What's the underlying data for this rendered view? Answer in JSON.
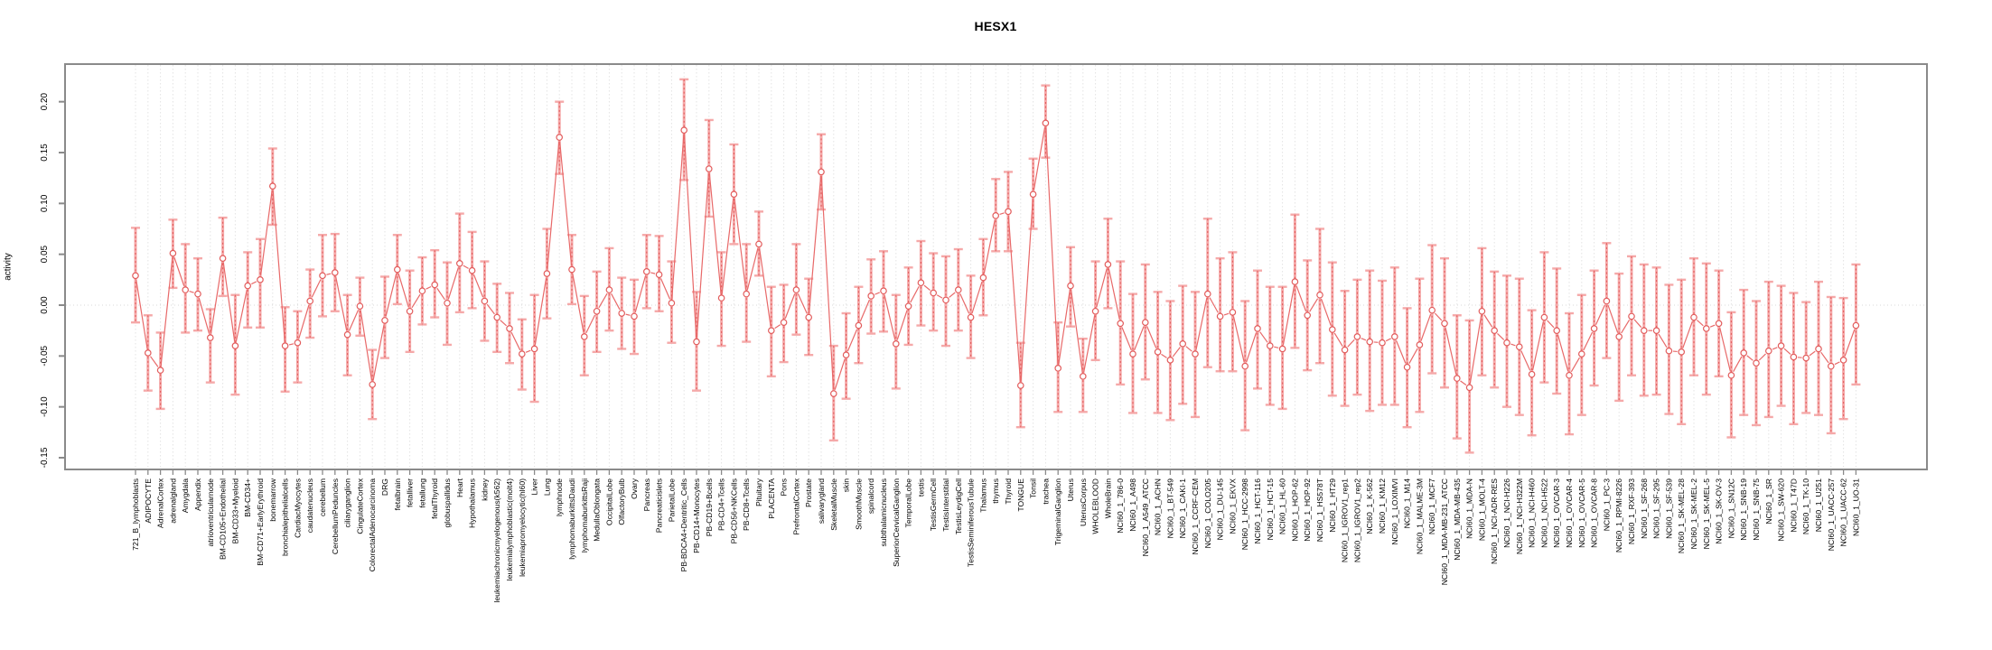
{
  "chart_data": {
    "type": "line",
    "title": "HESX1",
    "ylabel": "activity",
    "xlabel": "",
    "ylim": [
      -0.1615,
      0.2365
    ],
    "y_ticks": [
      -0.15,
      -0.1,
      -0.05,
      0.0,
      0.05,
      0.1,
      0.15,
      0.2
    ],
    "grid": "vertical-dashed-per-category, dotted-zero-line, boxed-frame",
    "legend": "none",
    "marker": "open-circle",
    "error_bars": true,
    "colors": {
      "series_line": "#e86969",
      "marker_stroke": "#e25c5c",
      "error_bar": "#f5a9a9",
      "error_center_dotted": "#e25c5c",
      "gridline": "#e3e3e3",
      "zero_line": "#d8d8d8",
      "frame": "#8a8a8a",
      "text": "#000000"
    },
    "categories": [
      "721_B_lymphoblasts",
      "ADIPOCYTE",
      "AdrenalCortex",
      "adrenalgland",
      "Amygdala",
      "Appendix",
      "atrioventricularnode",
      "BM-CD105+Endothelial",
      "BM-CD33+Myeloid",
      "BM-CD34+",
      "BM-CD71+EarlyErythroid",
      "bonemarrow",
      "bronchialepithelialcells",
      "CardiacMyocytes",
      "caudatenucleus",
      "cerebellum",
      "CerebellumPeduncles",
      "ciliaryganglion",
      "CingulateCortex",
      "ColorectalAdenocarcinoma",
      "DRG",
      "fetalbrain",
      "fetalliver",
      "fetallung",
      "fetalThyroid",
      "globuspallidus",
      "Heart",
      "Hypothalamus",
      "kidney",
      "leukemiachronicmyelogenous(k562)",
      "leukemialymphoblastic(molt4)",
      "leukemiapromyelocytic(hl60)",
      "Liver",
      "Lung",
      "lymphnode",
      "lymphomaburkittsDaudi",
      "lymphomaburkittsRaji",
      "MedullaOblongata",
      "OccipitalLobe",
      "OlfactoryBulb",
      "Ovary",
      "Pancreas",
      "Pancreaticislets",
      "ParietalLobe",
      "PB-BDCA4+Dentritic_Cells",
      "PB-CD14+Monocytes",
      "PB-CD19+Bcells",
      "PB-CD4+Tcells",
      "PB-CD56+NKCells",
      "PB-CD8+Tcells",
      "Pituitary",
      "PLACENTA",
      "Pons",
      "PrefrontalCortex",
      "Prostate",
      "salivarygland",
      "SkeletalMuscle",
      "skin",
      "SmoothMuscle",
      "spinalcord",
      "subthalamicnucleus",
      "SuperiorCervicalGanglion",
      "TemporalLobe",
      "testis",
      "TestisGermCell",
      "TestisInterstitial",
      "TestisLeydigCell",
      "TestisSeminiferousTubule",
      "Thalamus",
      "thymus",
      "Thyroid",
      "TONGUE",
      "Tonsil",
      "trachea",
      "TrigeminalGanglion",
      "Uterus",
      "UterusCorpus",
      "WHOLEBLOOD",
      "WholeBrain",
      "NCI60_1_786-0",
      "NCI60_1_A498",
      "NCI60_1_A549_ATCC",
      "NCI60_1_ACHN",
      "NCI60_1_BT-549",
      "NCI60_1_CAKI-1",
      "NCI60_1_CCRF-CEM",
      "NCI60_1_COLO205",
      "NCI60_1_DU-145",
      "NCI60_1_EKVX",
      "NCI60_1_HCC-2998",
      "NCI60_1_HCT-116",
      "NCI60_1_HCT-15",
      "NCI60_1_HL-60",
      "NCI60_1_HOP-62",
      "NCI60_1_HOP-92",
      "NCI60_1_HS578T",
      "NCI60_1_HT29",
      "NCI60_1_IGROV1_rep1",
      "NCI60_1_IGROV1_rep2",
      "NCI60_1_K-562",
      "NCI60_1_KM12",
      "NCI60_1_LOXIMVI",
      "NCI60_1_M14",
      "NCI60_1_MALME-3M",
      "NCI60_1_MCF7",
      "NCI60_1_MDA-MB-231_ATCC",
      "NCI60_1_MDA-MB-435",
      "NCI60_1_MDA-N",
      "NCI60_1_MOLT-4",
      "NCI60_1_NCI-ADR-RES",
      "NCI60_1_NCI-H226",
      "NCI60_1_NCI-H322M",
      "NCI60_1_NCI-H460",
      "NCI60_1_NCI-H522",
      "NCI60_1_OVCAR-3",
      "NCI60_1_OVCAR-4",
      "NCI60_1_OVCAR-5",
      "NCI60_1_OVCAR-8",
      "NCI60_1_PC-3",
      "NCI60_1_RPMI-8226",
      "NCI60_1_RXF-393",
      "NCI60_1_SF-268",
      "NCI60_1_SF-295",
      "NCI60_1_SF-539",
      "NCI60_1_SK-MEL-28",
      "NCI60_1_SK-MEL-2",
      "NCI60_1_SK-MEL-5",
      "NCI60_1_SK-OV-3",
      "NCI60_1_SN12C",
      "NCI60_1_SNB-19",
      "NCI60_1_SNB-75",
      "NCI60_1_SR",
      "NCI60_1_SW-620",
      "NCI60_1_T47D",
      "NCI60_1_TK-10",
      "NCI60_1_U251",
      "NCI60_1_UACC-257",
      "NCI60_1_UACC-62",
      "NCI60_1_UO-31"
    ],
    "values": [
      0.029,
      -0.047,
      -0.064,
      0.051,
      0.015,
      0.011,
      -0.032,
      0.046,
      -0.04,
      0.019,
      0.025,
      0.117,
      -0.04,
      -0.037,
      0.004,
      0.029,
      0.032,
      -0.029,
      -0.001,
      -0.078,
      -0.015,
      0.035,
      -0.006,
      0.014,
      0.02,
      0.002,
      0.041,
      0.034,
      0.004,
      -0.012,
      -0.023,
      -0.048,
      -0.043,
      0.031,
      0.165,
      0.035,
      -0.031,
      -0.006,
      0.015,
      -0.008,
      -0.011,
      0.033,
      0.03,
      0.002,
      0.172,
      -0.036,
      0.134,
      0.007,
      0.109,
      0.011,
      0.06,
      -0.025,
      -0.017,
      0.015,
      -0.012,
      0.131,
      -0.087,
      -0.049,
      -0.02,
      0.009,
      0.014,
      -0.038,
      -0.001,
      0.022,
      0.012,
      0.005,
      0.015,
      -0.012,
      0.027,
      0.088,
      0.092,
      -0.079,
      0.109,
      0.179,
      -0.062,
      0.019,
      -0.07,
      -0.006,
      0.04,
      -0.018,
      -0.048,
      -0.017,
      -0.046,
      -0.054,
      -0.038,
      -0.048,
      0.011,
      -0.011,
      -0.007,
      -0.06,
      -0.023,
      -0.04,
      -0.043,
      0.023,
      -0.01,
      0.01,
      -0.024,
      -0.044,
      -0.031,
      -0.036,
      -0.037,
      -0.031,
      -0.061,
      -0.039,
      -0.005,
      -0.018,
      -0.072,
      -0.081,
      -0.006,
      -0.025,
      -0.037,
      -0.041,
      -0.068,
      -0.012,
      -0.025,
      -0.069,
      -0.048,
      -0.023,
      0.004,
      -0.031,
      -0.011,
      -0.025,
      -0.025,
      -0.045,
      -0.046,
      -0.012,
      -0.023,
      -0.018,
      -0.069,
      -0.047,
      -0.057,
      -0.045,
      -0.04,
      -0.051,
      -0.052,
      -0.043,
      -0.06,
      -0.054,
      -0.02
    ],
    "err_lo": [
      -0.017,
      -0.084,
      -0.102,
      0.017,
      -0.027,
      -0.025,
      -0.076,
      0.009,
      -0.088,
      -0.022,
      -0.022,
      0.079,
      -0.085,
      -0.076,
      -0.032,
      -0.011,
      -0.006,
      -0.069,
      -0.03,
      -0.112,
      -0.052,
      0.001,
      -0.046,
      -0.019,
      -0.012,
      -0.039,
      -0.007,
      -0.003,
      -0.035,
      -0.046,
      -0.057,
      -0.083,
      -0.095,
      -0.013,
      0.129,
      0.001,
      -0.069,
      -0.046,
      -0.025,
      -0.043,
      -0.048,
      -0.003,
      -0.006,
      -0.037,
      0.123,
      -0.084,
      0.087,
      -0.04,
      0.06,
      -0.036,
      0.029,
      -0.07,
      -0.056,
      -0.029,
      -0.049,
      0.094,
      -0.133,
      -0.092,
      -0.057,
      -0.028,
      -0.026,
      -0.082,
      -0.039,
      -0.02,
      -0.025,
      -0.04,
      -0.025,
      -0.052,
      -0.01,
      0.053,
      0.053,
      -0.12,
      0.075,
      0.145,
      -0.105,
      -0.021,
      -0.105,
      -0.054,
      -0.003,
      -0.078,
      -0.106,
      -0.073,
      -0.106,
      -0.113,
      -0.097,
      -0.11,
      -0.061,
      -0.065,
      -0.065,
      -0.123,
      -0.082,
      -0.098,
      -0.102,
      -0.042,
      -0.064,
      -0.057,
      -0.089,
      -0.099,
      -0.088,
      -0.104,
      -0.098,
      -0.098,
      -0.12,
      -0.105,
      -0.067,
      -0.081,
      -0.131,
      -0.145,
      -0.069,
      -0.081,
      -0.1,
      -0.108,
      -0.128,
      -0.076,
      -0.087,
      -0.127,
      -0.108,
      -0.079,
      -0.052,
      -0.094,
      -0.069,
      -0.089,
      -0.088,
      -0.107,
      -0.117,
      -0.069,
      -0.088,
      -0.07,
      -0.13,
      -0.108,
      -0.118,
      -0.11,
      -0.099,
      -0.117,
      -0.106,
      -0.108,
      -0.126,
      -0.112,
      -0.078
    ],
    "err_hi": [
      0.076,
      -0.01,
      -0.027,
      0.084,
      0.06,
      0.046,
      -0.004,
      0.086,
      0.01,
      0.052,
      0.065,
      0.154,
      -0.002,
      -0.006,
      0.035,
      0.069,
      0.07,
      0.01,
      0.027,
      -0.044,
      0.028,
      0.069,
      0.034,
      0.047,
      0.054,
      0.042,
      0.09,
      0.072,
      0.043,
      0.021,
      0.012,
      -0.014,
      0.01,
      0.075,
      0.2,
      0.069,
      0.009,
      0.033,
      0.056,
      0.027,
      0.025,
      0.069,
      0.068,
      0.043,
      0.222,
      0.013,
      0.182,
      0.052,
      0.158,
      0.06,
      0.092,
      0.018,
      0.02,
      0.06,
      0.026,
      0.168,
      -0.04,
      -0.008,
      0.018,
      0.045,
      0.053,
      0.01,
      0.037,
      0.063,
      0.051,
      0.048,
      0.055,
      0.029,
      0.065,
      0.124,
      0.131,
      -0.037,
      0.144,
      0.216,
      -0.017,
      0.057,
      -0.033,
      0.043,
      0.085,
      0.043,
      0.011,
      0.04,
      0.013,
      0.004,
      0.019,
      0.013,
      0.085,
      0.046,
      0.052,
      0.004,
      0.034,
      0.018,
      0.018,
      0.089,
      0.044,
      0.075,
      0.042,
      0.014,
      0.025,
      0.034,
      0.024,
      0.037,
      -0.003,
      0.026,
      0.059,
      0.046,
      -0.01,
      -0.015,
      0.056,
      0.033,
      0.029,
      0.026,
      -0.005,
      0.052,
      0.036,
      -0.008,
      0.01,
      0.034,
      0.061,
      0.031,
      0.048,
      0.04,
      0.037,
      0.02,
      0.025,
      0.046,
      0.041,
      0.034,
      -0.007,
      0.015,
      0.004,
      0.023,
      0.019,
      0.012,
      0.003,
      0.023,
      0.008,
      0.007,
      0.04
    ]
  }
}
